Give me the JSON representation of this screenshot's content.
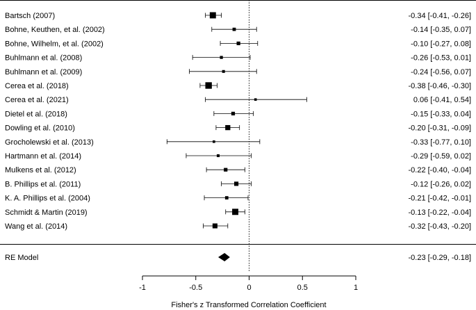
{
  "colors": {
    "line": "#000000",
    "background": "#ffffff"
  },
  "chart_data": {
    "type": "forest",
    "xlabel": "Fisher's z Transformed Correlation Coefficient",
    "xlim": [
      -1,
      1
    ],
    "ticks": [
      -1,
      -0.5,
      0,
      0.5,
      1
    ],
    "tick_labels": [
      "-1",
      "-0.5",
      "0",
      "0.5",
      "1"
    ],
    "reference_line": 0,
    "studies": [
      {
        "label": "Bartsch (2007)",
        "est": -0.34,
        "lo": -0.41,
        "hi": -0.26,
        "weight": 3.0,
        "text": "-0.34 [-0.41, -0.26]"
      },
      {
        "label": "Bohne, Keuthen, et al. (2002)",
        "est": -0.14,
        "lo": -0.35,
        "hi": 0.07,
        "weight": 1.2,
        "text": "-0.14 [-0.35,  0.07]"
      },
      {
        "label": "Bohne, Wilhelm, et al. (2002)",
        "est": -0.1,
        "lo": -0.27,
        "hi": 0.08,
        "weight": 1.4,
        "text": "-0.10 [-0.27,  0.08]"
      },
      {
        "label": "Buhlmann et al. (2008)",
        "est": -0.26,
        "lo": -0.53,
        "hi": 0.01,
        "weight": 1.0,
        "text": "-0.26 [-0.53,  0.01]"
      },
      {
        "label": "Buhlmann et al. (2009)",
        "est": -0.24,
        "lo": -0.56,
        "hi": 0.07,
        "weight": 0.9,
        "text": "-0.24 [-0.56,  0.07]"
      },
      {
        "label": "Cerea et al. (2018)",
        "est": -0.38,
        "lo": -0.46,
        "hi": -0.3,
        "weight": 3.2,
        "text": "-0.38 [-0.46, -0.30]"
      },
      {
        "label": "Cerea et al. (2021)",
        "est": 0.06,
        "lo": -0.41,
        "hi": 0.54,
        "weight": 0.7,
        "text": "0.06 [-0.41,  0.54]"
      },
      {
        "label": "Dietel et al. (2018)",
        "est": -0.15,
        "lo": -0.33,
        "hi": 0.04,
        "weight": 1.4,
        "text": "-0.15 [-0.33,  0.04]"
      },
      {
        "label": "Dowling et al. (2010)",
        "est": -0.2,
        "lo": -0.31,
        "hi": -0.09,
        "weight": 2.3,
        "text": "-0.20 [-0.31, -0.09]"
      },
      {
        "label": "Grocholewski et al. (2013)",
        "est": -0.33,
        "lo": -0.77,
        "hi": 0.1,
        "weight": 0.7,
        "text": "-0.33 [-0.77,  0.10]"
      },
      {
        "label": "Hartmann et al. (2014)",
        "est": -0.29,
        "lo": -0.59,
        "hi": 0.02,
        "weight": 0.9,
        "text": "-0.29 [-0.59,  0.02]"
      },
      {
        "label": "Mulkens et al. (2012)",
        "est": -0.22,
        "lo": -0.4,
        "hi": -0.04,
        "weight": 1.4,
        "text": "-0.22 [-0.40, -0.04]"
      },
      {
        "label": "B. Phillips et al. (2011)",
        "est": -0.12,
        "lo": -0.26,
        "hi": 0.02,
        "weight": 1.8,
        "text": "-0.12 [-0.26,  0.02]"
      },
      {
        "label": "K. A. Phillips et al. (2004)",
        "est": -0.21,
        "lo": -0.42,
        "hi": -0.01,
        "weight": 1.2,
        "text": "-0.21 [-0.42, -0.01]"
      },
      {
        "label": "Schmidt & Martin (2019)",
        "est": -0.13,
        "lo": -0.22,
        "hi": -0.04,
        "weight": 3.0,
        "text": "-0.13 [-0.22, -0.04]"
      },
      {
        "label": "Wang et al. (2014)",
        "est": -0.32,
        "lo": -0.43,
        "hi": -0.2,
        "weight": 2.2,
        "text": "-0.32 [-0.43, -0.20]"
      }
    ],
    "summary": {
      "label": "RE Model",
      "est": -0.23,
      "lo": -0.29,
      "hi": -0.18,
      "text": "-0.23 [-0.29, -0.18]"
    }
  }
}
